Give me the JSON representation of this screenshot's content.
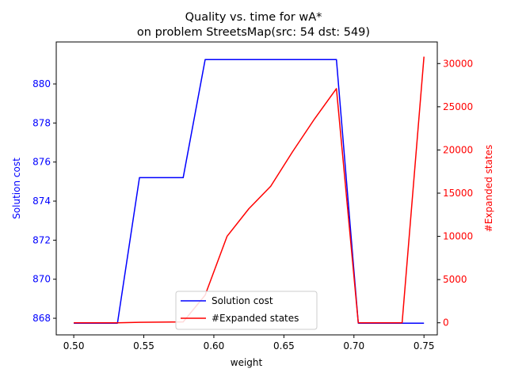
{
  "chart_data": {
    "type": "line",
    "title_line1": "Quality vs. time for wA*",
    "title_line2": "on problem StreetsMap(src: 54 dst: 549)",
    "xlabel": "weight",
    "ylabel_left": "Solution cost",
    "ylabel_right": "#Expanded states",
    "xlim": [
      0.4875,
      0.7595
    ],
    "ylim_left": [
      867.15,
      882.15
    ],
    "ylim_right": [
      -1400,
      32500
    ],
    "x_ticks": [
      "0.50",
      "0.55",
      "0.60",
      "0.65",
      "0.70",
      "0.75"
    ],
    "y_left_ticks": [
      "868",
      "870",
      "872",
      "874",
      "876",
      "878",
      "880"
    ],
    "y_right_ticks": [
      "0",
      "5000",
      "10000",
      "15000",
      "20000",
      "25000",
      "30000"
    ],
    "legend_position": "lower center",
    "colors": {
      "left_axis": "#0000ff",
      "right_axis": "#ff0000"
    },
    "series": [
      {
        "name": "Solution cost",
        "axis": "left",
        "color": "#0000ff",
        "x": [
          0.5,
          0.5156,
          0.5312,
          0.5469,
          0.5625,
          0.5781,
          0.5938,
          0.6094,
          0.625,
          0.6406,
          0.6562,
          0.6719,
          0.6875,
          0.7031,
          0.7188,
          0.7344,
          0.75
        ],
        "y": [
          867.75,
          867.75,
          867.75,
          875.2,
          875.2,
          875.2,
          881.25,
          881.25,
          881.25,
          881.25,
          881.25,
          881.25,
          881.25,
          867.75,
          867.75,
          867.75,
          867.75
        ]
      },
      {
        "name": "#Expanded states",
        "axis": "right",
        "color": "#ff0000",
        "x": [
          0.5,
          0.5156,
          0.5312,
          0.5469,
          0.5625,
          0.5781,
          0.5938,
          0.6094,
          0.625,
          0.6406,
          0.6562,
          0.6719,
          0.6875,
          0.7031,
          0.7188,
          0.7344,
          0.75
        ],
        "y": [
          0,
          0,
          0,
          50,
          80,
          100,
          3200,
          10000,
          13200,
          15800,
          19800,
          23600,
          27100,
          0,
          0,
          0,
          30800
        ]
      }
    ]
  }
}
